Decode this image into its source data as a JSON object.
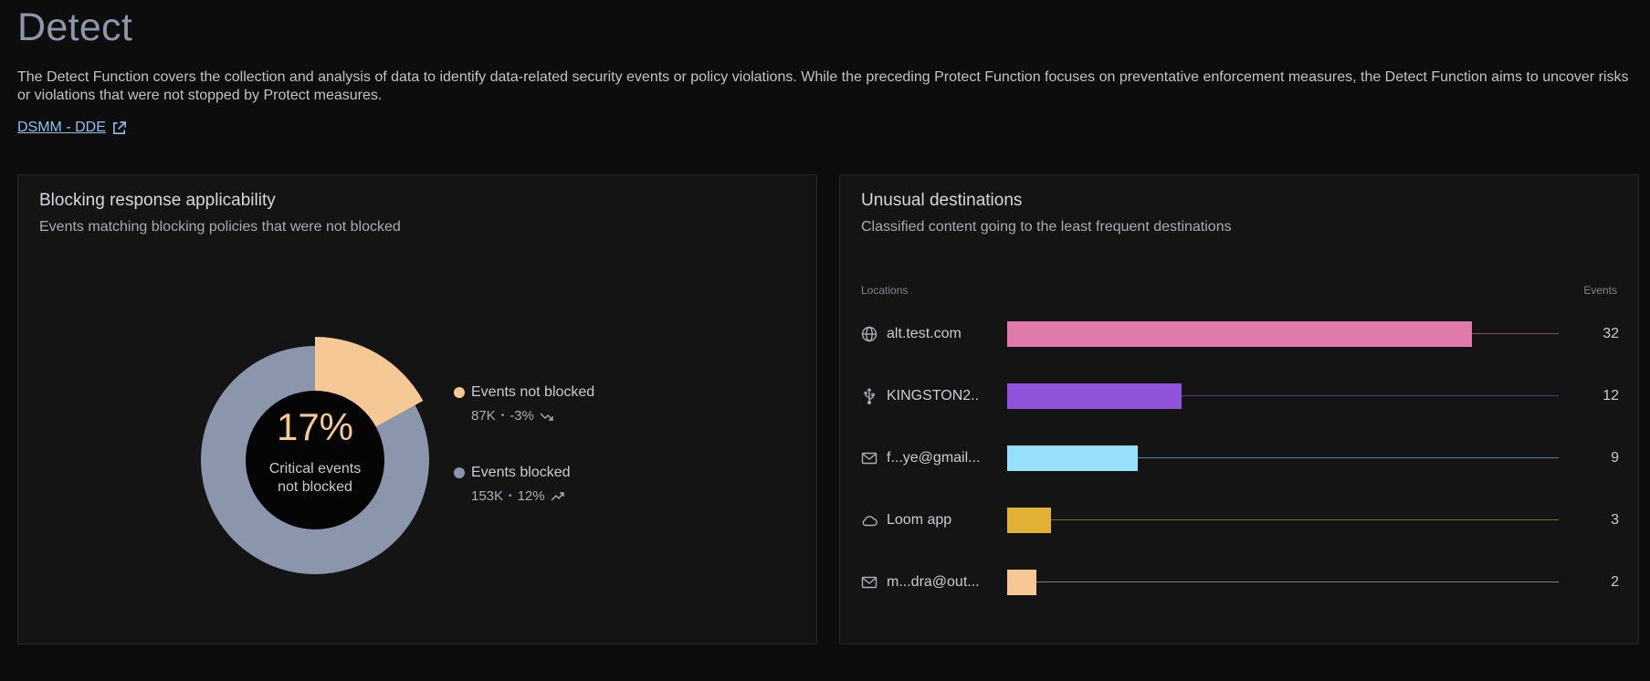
{
  "page": {
    "title": "Detect",
    "description": "The Detect Function covers the collection and analysis of data to identify data-related security events or policy violations. While the preceding Protect Function focuses on preventative enforcement measures, the Detect Function aims to uncover risks or violations that were not stopped by Protect measures.",
    "link_label": "DSMM - DDE"
  },
  "blocking": {
    "title": "Blocking response applicability",
    "subtitle": "Events matching blocking policies that were not blocked",
    "center_value": "17%",
    "center_label_1": "Critical events",
    "center_label_2": "not blocked",
    "not_blocked_fraction": 0.17,
    "legend": [
      {
        "label": "Events not blocked",
        "count": "87K",
        "change": "-3%",
        "trend": "down",
        "color": "#f6c895"
      },
      {
        "label": "Events blocked",
        "count": "153K",
        "change": "12%",
        "trend": "up",
        "color": "#8b96ac"
      }
    ]
  },
  "destinations": {
    "title": "Unusual destinations",
    "subtitle": "Classified content going to the least frequent destinations",
    "col_locations": "Locations",
    "col_events": "Events",
    "max_events": 38,
    "rows": [
      {
        "icon": "globe-icon",
        "name": "alt.test.com",
        "events": 32,
        "color": "#e07aab"
      },
      {
        "icon": "usb-icon",
        "name": "KINGSTON2...",
        "events": 12,
        "color": "#9153dc"
      },
      {
        "icon": "mail-icon",
        "name": "f...ye@gmail...",
        "events": 9,
        "color": "#96e0fb"
      },
      {
        "icon": "cloud-icon",
        "name": "Loom app",
        "events": 3,
        "color": "#e0b132"
      },
      {
        "icon": "mail-icon",
        "name": "m...dra@out...",
        "events": 2,
        "color": "#f6c895"
      }
    ]
  }
}
